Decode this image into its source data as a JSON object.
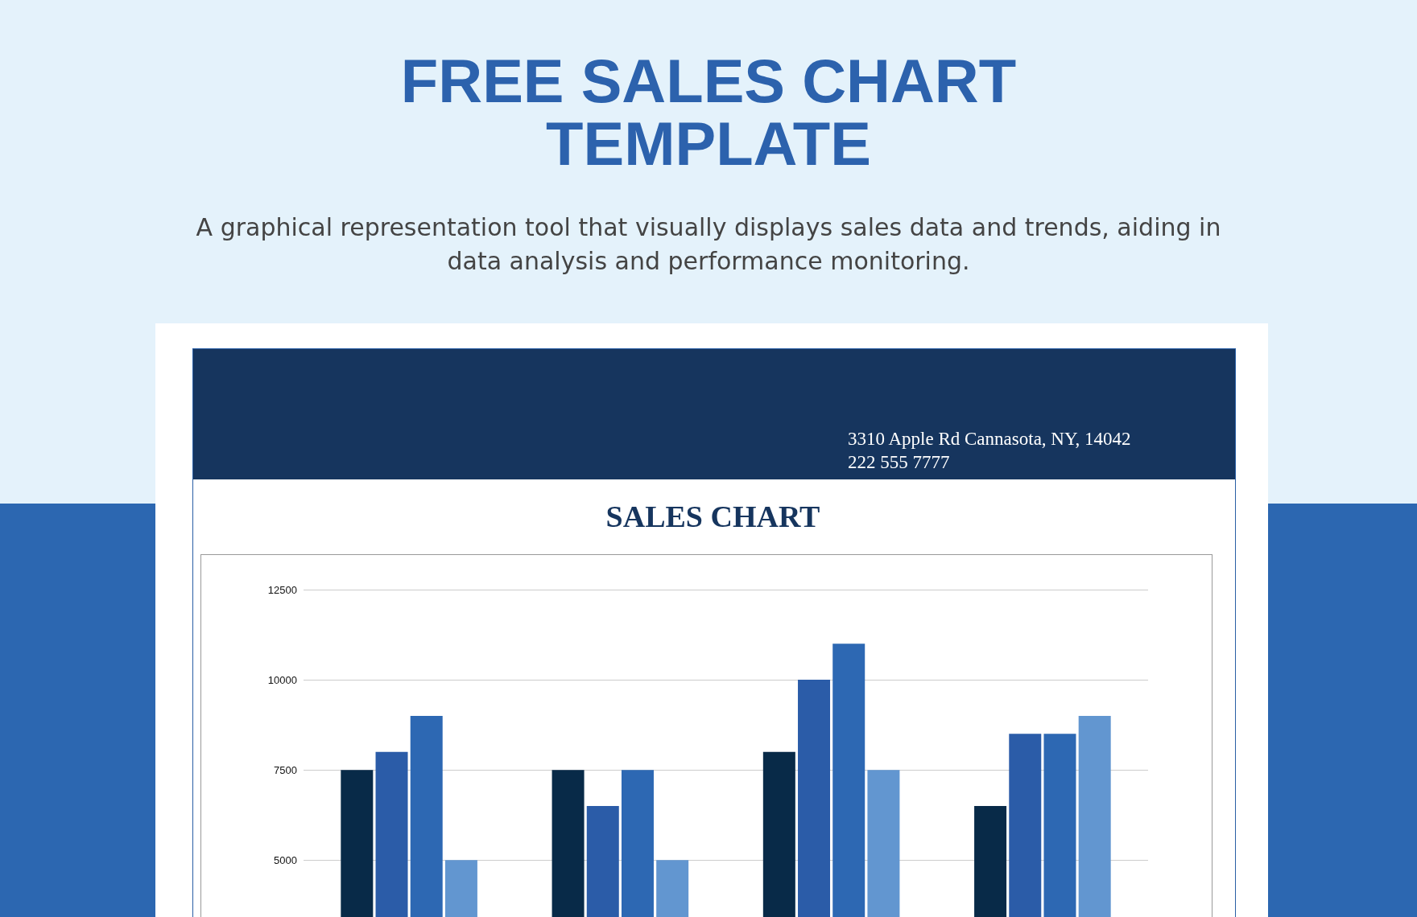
{
  "chart_data": {
    "type": "bar",
    "title": "FREE SALES CHART TEMPLATE",
    "subtitle": "A graphical representation tool that visually displays sales data and trends, aiding in data analysis and performance monitoring.",
    "annotations": [
      "SALES CHART",
      "3310 Apple Rd Cannasota, NY, 14042",
      "222 555 7777"
    ],
    "categories": [
      null,
      null,
      null,
      null
    ],
    "series": [
      {
        "color": "#082a48",
        "values": [
          7500,
          7500,
          8000,
          6500
        ]
      },
      {
        "color": "#2b5ca8",
        "values": [
          8000,
          6500,
          10000,
          8500
        ]
      },
      {
        "color": "#2d68b3",
        "values": [
          9000,
          7500,
          11000,
          8500
        ]
      },
      {
        "color": "#6296d0",
        "values": [
          5000,
          5000,
          7500,
          9000
        ]
      }
    ],
    "ylim": [
      3400,
      12500
    ],
    "yticks": [
      5000,
      7500,
      10000,
      12500
    ],
    "grid": "y",
    "tick_labels": "y"
  }
}
